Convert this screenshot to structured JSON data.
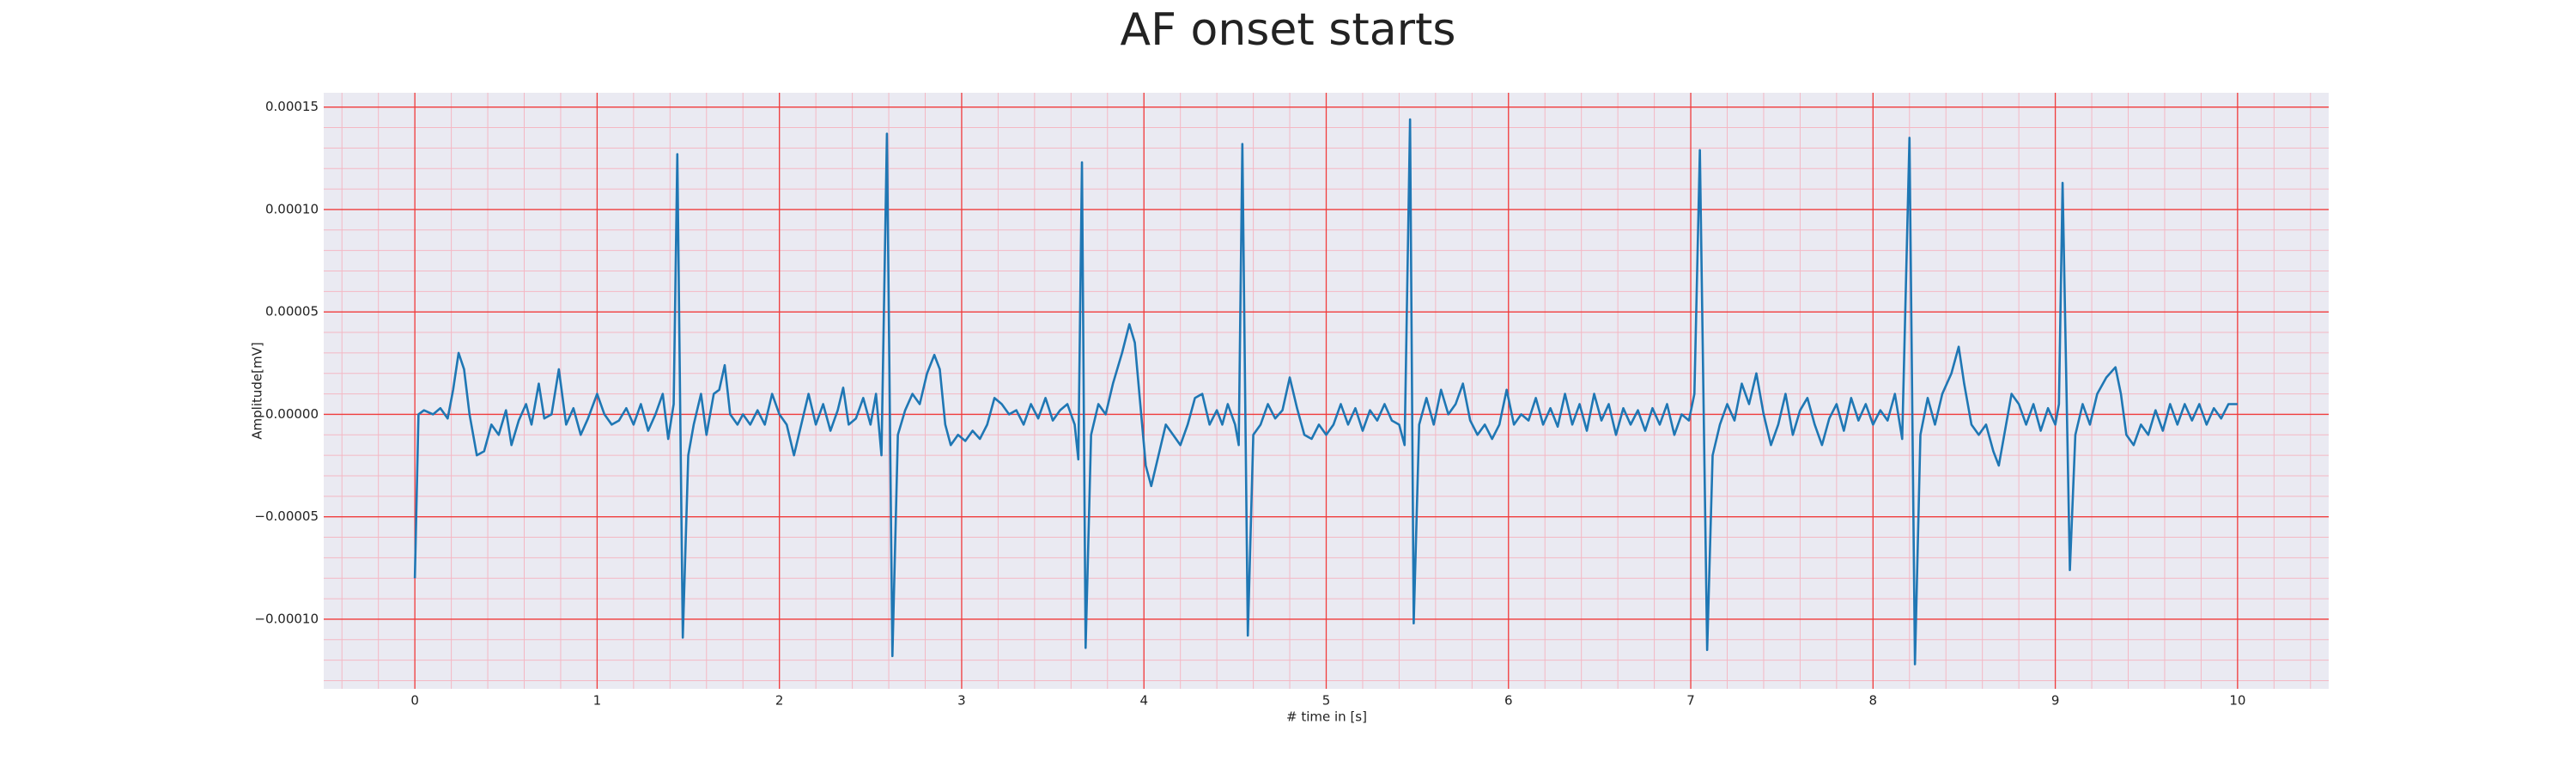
{
  "chart_data": {
    "type": "line",
    "title": "AF onset starts",
    "xlabel": "# time in [s]",
    "ylabel": "Amplitude[mV]",
    "color": "#1f77b4",
    "grid": true,
    "minor_grid": true,
    "xlim": [
      -0.5,
      10.5
    ],
    "xticks": [
      0,
      1,
      2,
      3,
      4,
      5,
      6,
      7,
      8,
      9,
      10
    ],
    "ylim": [
      -0.000134,
      0.000157
    ],
    "yticks": [
      {
        "value": -0.0001,
        "label": "−0.00010"
      },
      {
        "value": -5e-05,
        "label": "−0.00005"
      },
      {
        "value": 0,
        "label": "0.00000"
      },
      5e-05,
      {
        "value": 0.0001,
        "label": "0.00010"
      },
      0.00015
    ],
    "x": [
      0,
      0.02,
      0.05,
      0.1,
      0.14,
      0.18,
      0.21,
      0.24,
      0.27,
      0.3,
      0.34,
      0.38,
      0.42,
      0.46,
      0.5,
      0.53,
      0.57,
      0.61,
      0.64,
      0.68,
      0.71,
      0.75,
      0.79,
      0.83,
      0.87,
      0.91,
      0.95,
      1,
      1.04,
      1.08,
      1.12,
      1.16,
      1.2,
      1.24,
      1.28,
      1.32,
      1.36,
      1.39,
      1.42,
      1.44,
      1.47,
      1.5,
      1.53,
      1.57,
      1.6,
      1.64,
      1.67,
      1.7,
      1.73,
      1.77,
      1.8,
      1.84,
      1.88,
      1.92,
      1.96,
      2,
      2.04,
      2.08,
      2.12,
      2.16,
      2.2,
      2.24,
      2.28,
      2.32,
      2.35,
      2.38,
      2.42,
      2.46,
      2.5,
      2.53,
      2.56,
      2.59,
      2.62,
      2.65,
      2.69,
      2.73,
      2.77,
      2.81,
      2.85,
      2.88,
      2.91,
      2.94,
      2.98,
      3.02,
      3.06,
      3.1,
      3.14,
      3.18,
      3.22,
      3.26,
      3.3,
      3.34,
      3.38,
      3.42,
      3.46,
      3.5,
      3.54,
      3.58,
      3.62,
      3.64,
      3.66,
      3.68,
      3.71,
      3.75,
      3.79,
      3.83,
      3.88,
      3.92,
      3.95,
      3.98,
      4.01,
      4.04,
      4.08,
      4.12,
      4.16,
      4.2,
      4.24,
      4.28,
      4.32,
      4.36,
      4.4,
      4.43,
      4.46,
      4.5,
      4.52,
      4.54,
      4.57,
      4.6,
      4.64,
      4.68,
      4.72,
      4.76,
      4.8,
      4.84,
      4.88,
      4.92,
      4.96,
      5,
      5.04,
      5.08,
      5.12,
      5.16,
      5.2,
      5.24,
      5.28,
      5.32,
      5.36,
      5.4,
      5.43,
      5.46,
      5.48,
      5.51,
      5.55,
      5.59,
      5.63,
      5.67,
      5.71,
      5.75,
      5.79,
      5.83,
      5.87,
      5.91,
      5.95,
      5.99,
      6.03,
      6.07,
      6.11,
      6.15,
      6.19,
      6.23,
      6.27,
      6.31,
      6.35,
      6.39,
      6.43,
      6.47,
      6.51,
      6.55,
      6.59,
      6.63,
      6.67,
      6.71,
      6.75,
      6.79,
      6.83,
      6.87,
      6.91,
      6.95,
      6.99,
      7.02,
      7.05,
      7.09,
      7.12,
      7.16,
      7.2,
      7.24,
      7.28,
      7.32,
      7.36,
      7.4,
      7.44,
      7.48,
      7.52,
      7.56,
      7.6,
      7.64,
      7.68,
      7.72,
      7.76,
      7.8,
      7.84,
      7.88,
      7.92,
      7.96,
      8,
      8.04,
      8.08,
      8.12,
      8.16,
      8.2,
      8.23,
      8.26,
      8.3,
      8.34,
      8.38,
      8.43,
      8.47,
      8.5,
      8.54,
      8.58,
      8.62,
      8.66,
      8.69,
      8.72,
      8.76,
      8.8,
      8.84,
      8.88,
      8.92,
      8.96,
      9,
      9.02,
      9.04,
      9.08,
      9.11,
      9.15,
      9.19,
      9.23,
      9.28,
      9.33,
      9.36,
      9.39,
      9.43,
      9.47,
      9.51,
      9.55,
      9.59,
      9.63,
      9.67,
      9.71,
      9.75,
      9.79,
      9.83,
      9.87,
      9.91,
      9.95,
      10
    ],
    "values": [
      -8e-05,
      0,
      2e-06,
      0,
      3e-06,
      -2e-06,
      1.2e-05,
      3e-05,
      2.2e-05,
      0,
      -2e-05,
      -1.8e-05,
      -5e-06,
      -1e-05,
      2e-06,
      -1.5e-05,
      -3e-06,
      5e-06,
      -5e-06,
      1.5e-05,
      -2e-06,
      0,
      2.2e-05,
      -5e-06,
      3e-06,
      -1e-05,
      -2e-06,
      1e-05,
      0,
      -5e-06,
      -3e-06,
      3e-06,
      -5e-06,
      5e-06,
      -8e-06,
      0,
      1e-05,
      -1.2e-05,
      5e-06,
      0.000127,
      -0.000109,
      -2e-05,
      -5e-06,
      1e-05,
      -1e-05,
      1e-05,
      1.2e-05,
      2.4e-05,
      0,
      -5e-06,
      0,
      -5e-06,
      2e-06,
      -5e-06,
      1e-05,
      0,
      -5e-06,
      -2e-05,
      -5e-06,
      1e-05,
      -5e-06,
      5e-06,
      -8e-06,
      2e-06,
      1.3e-05,
      -5e-06,
      -2e-06,
      8e-06,
      -5e-06,
      1e-05,
      -2e-05,
      0.000137,
      -0.000118,
      -1e-05,
      2e-06,
      1e-05,
      5e-06,
      2e-05,
      2.9e-05,
      2.2e-05,
      -5e-06,
      -1.5e-05,
      -1e-05,
      -1.3e-05,
      -8e-06,
      -1.2e-05,
      -5e-06,
      8e-06,
      5e-06,
      0,
      2e-06,
      -5e-06,
      5e-06,
      -2e-06,
      8e-06,
      -3e-06,
      2e-06,
      5e-06,
      -5e-06,
      -2.2e-05,
      0.000123,
      -0.000114,
      -1e-05,
      5e-06,
      0,
      1.5e-05,
      3e-05,
      4.4e-05,
      3.5e-05,
      5e-06,
      -2.5e-05,
      -3.5e-05,
      -2e-05,
      -5e-06,
      -1e-05,
      -1.5e-05,
      -5e-06,
      8e-06,
      1e-05,
      -5e-06,
      2e-06,
      -5e-06,
      5e-06,
      -5e-06,
      -1.5e-05,
      0.000132,
      -0.000108,
      -1e-05,
      -5e-06,
      5e-06,
      -2e-06,
      2e-06,
      1.8e-05,
      3e-06,
      -1e-05,
      -1.2e-05,
      -5e-06,
      -1e-05,
      -5e-06,
      5e-06,
      -5e-06,
      3e-06,
      -8e-06,
      2e-06,
      -3e-06,
      5e-06,
      -3e-06,
      -5e-06,
      -1.5e-05,
      0.000144,
      -0.000102,
      -5e-06,
      8e-06,
      -5e-06,
      1.2e-05,
      0,
      5e-06,
      1.5e-05,
      -3e-06,
      -1e-05,
      -5e-06,
      -1.2e-05,
      -5e-06,
      1.2e-05,
      -5e-06,
      0,
      -3e-06,
      8e-06,
      -5e-06,
      3e-06,
      -6e-06,
      1e-05,
      -5e-06,
      5e-06,
      -8e-06,
      1e-05,
      -3e-06,
      5e-06,
      -1e-05,
      3e-06,
      -5e-06,
      2e-06,
      -8e-06,
      3e-06,
      -5e-06,
      5e-06,
      -1e-05,
      0,
      -3e-06,
      1e-05,
      0.000129,
      -0.000115,
      -2e-05,
      -5e-06,
      5e-06,
      -3e-06,
      1.5e-05,
      5e-06,
      2e-05,
      0,
      -1.5e-05,
      -5e-06,
      1e-05,
      -1e-05,
      2e-06,
      8e-06,
      -5e-06,
      -1.5e-05,
      -2e-06,
      5e-06,
      -8e-06,
      8e-06,
      -3e-06,
      5e-06,
      -5e-06,
      2e-06,
      -3e-06,
      1e-05,
      -1.2e-05,
      0.000135,
      -0.000122,
      -1e-05,
      8e-06,
      -5e-06,
      1e-05,
      2e-05,
      3.3e-05,
      1.5e-05,
      -5e-06,
      -1e-05,
      -5e-06,
      -1.8e-05,
      -2.5e-05,
      -1e-05,
      1e-05,
      5e-06,
      -5e-06,
      5e-06,
      -8e-06,
      3e-06,
      -5e-06,
      5e-06,
      0.000113,
      -7.6e-05,
      -1e-05,
      5e-06,
      -5e-06,
      1e-05,
      1.8e-05,
      2.3e-05,
      1e-05,
      -1e-05,
      -1.5e-05,
      -5e-06,
      -1e-05,
      2e-06,
      -8e-06,
      5e-06,
      -5e-06,
      5e-06,
      -3e-06,
      5e-06,
      -5e-06,
      3e-06,
      -2e-06,
      5e-06,
      5e-06
    ]
  }
}
